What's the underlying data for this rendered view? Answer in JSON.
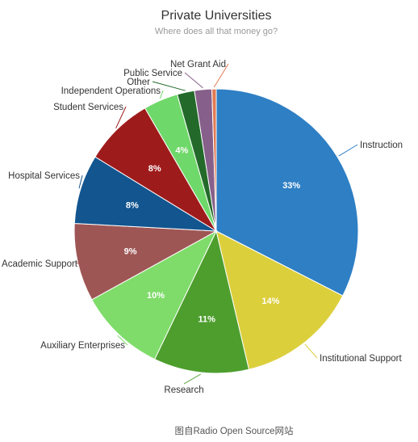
{
  "chart_data": {
    "type": "pie",
    "title": "Private Universities",
    "subtitle": "Where does all that money go?",
    "slices": [
      {
        "label": "Instruction",
        "value": 33,
        "pct_label": "33%",
        "color": "#2e7fc4"
      },
      {
        "label": "Institutional Support",
        "value": 14,
        "pct_label": "14%",
        "color": "#dccf3c"
      },
      {
        "label": "Research",
        "value": 11,
        "pct_label": "11%",
        "color": "#4e9e2e"
      },
      {
        "label": "Auxiliary Enterprises",
        "value": 10,
        "pct_label": "10%",
        "color": "#7fdc6a"
      },
      {
        "label": "Academic Support",
        "value": 9,
        "pct_label": "9%",
        "color": "#9e5655"
      },
      {
        "label": "Hospital Services",
        "value": 8,
        "pct_label": "8%",
        "color": "#12558f"
      },
      {
        "label": "Student Services",
        "value": 8,
        "pct_label": "8%",
        "color": "#9e1b1c"
      },
      {
        "label": "Independent Operations",
        "value": 4,
        "pct_label": "4%",
        "color": "#6fd86a"
      },
      {
        "label": "Other",
        "value": 2,
        "pct_label": "",
        "color": "#236a2a"
      },
      {
        "label": "Public Service",
        "value": 2,
        "pct_label": "",
        "color": "#86608a"
      },
      {
        "label": "Net Grant Aid",
        "value": 0.5,
        "pct_label": "",
        "color": "#e27a52"
      }
    ]
  },
  "caption": "图自Radio Open Source网站"
}
